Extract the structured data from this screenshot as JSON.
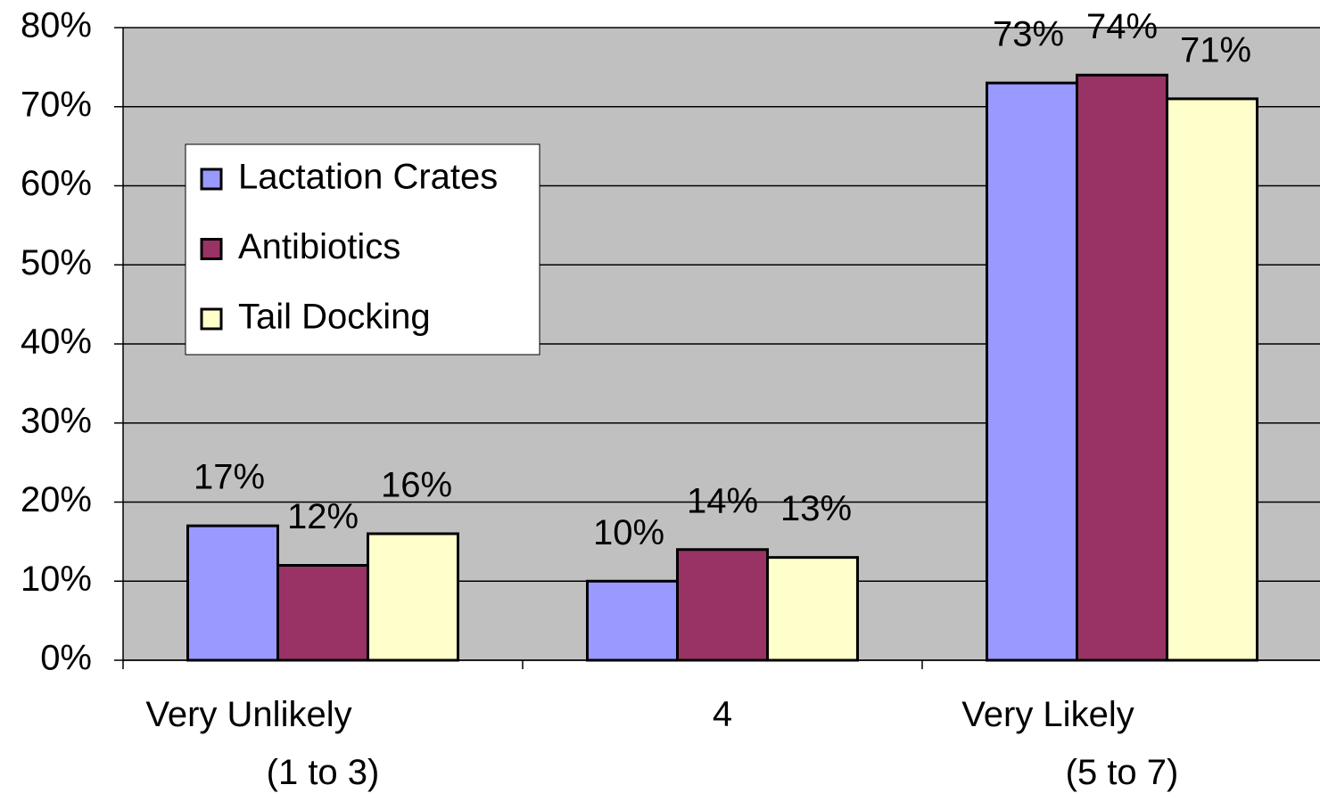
{
  "chart_data": {
    "type": "bar",
    "categories": [
      "Very Unlikely\n(1 to 3)",
      "4",
      "Very Likely\n(5 to 7)"
    ],
    "series": [
      {
        "name": "Lactation Crates",
        "color": "#9999ff",
        "values": [
          17,
          10,
          73
        ],
        "value_labels": [
          "17%",
          "10%",
          "73%"
        ]
      },
      {
        "name": "Antibiotics",
        "color": "#993366",
        "values": [
          12,
          14,
          74
        ],
        "value_labels": [
          "12%",
          "14%",
          "74%"
        ]
      },
      {
        "name": "Tail Docking",
        "color": "#ffffcc",
        "values": [
          16,
          13,
          71
        ],
        "value_labels": [
          "16%",
          "13%",
          "71%"
        ]
      }
    ],
    "ylim": [
      0,
      80
    ],
    "yticks": [
      {
        "value": 0,
        "label": "0%"
      },
      {
        "value": 10,
        "label": "10%"
      },
      {
        "value": 20,
        "label": "20%"
      },
      {
        "value": 30,
        "label": "30%"
      },
      {
        "value": 40,
        "label": "40%"
      },
      {
        "value": 50,
        "label": "50%"
      },
      {
        "value": 60,
        "label": "60%"
      },
      {
        "value": 70,
        "label": "70%"
      },
      {
        "value": 80,
        "label": "80%"
      }
    ],
    "grid": true,
    "legend": "upper left",
    "plot_background": "#c0c0c0"
  }
}
